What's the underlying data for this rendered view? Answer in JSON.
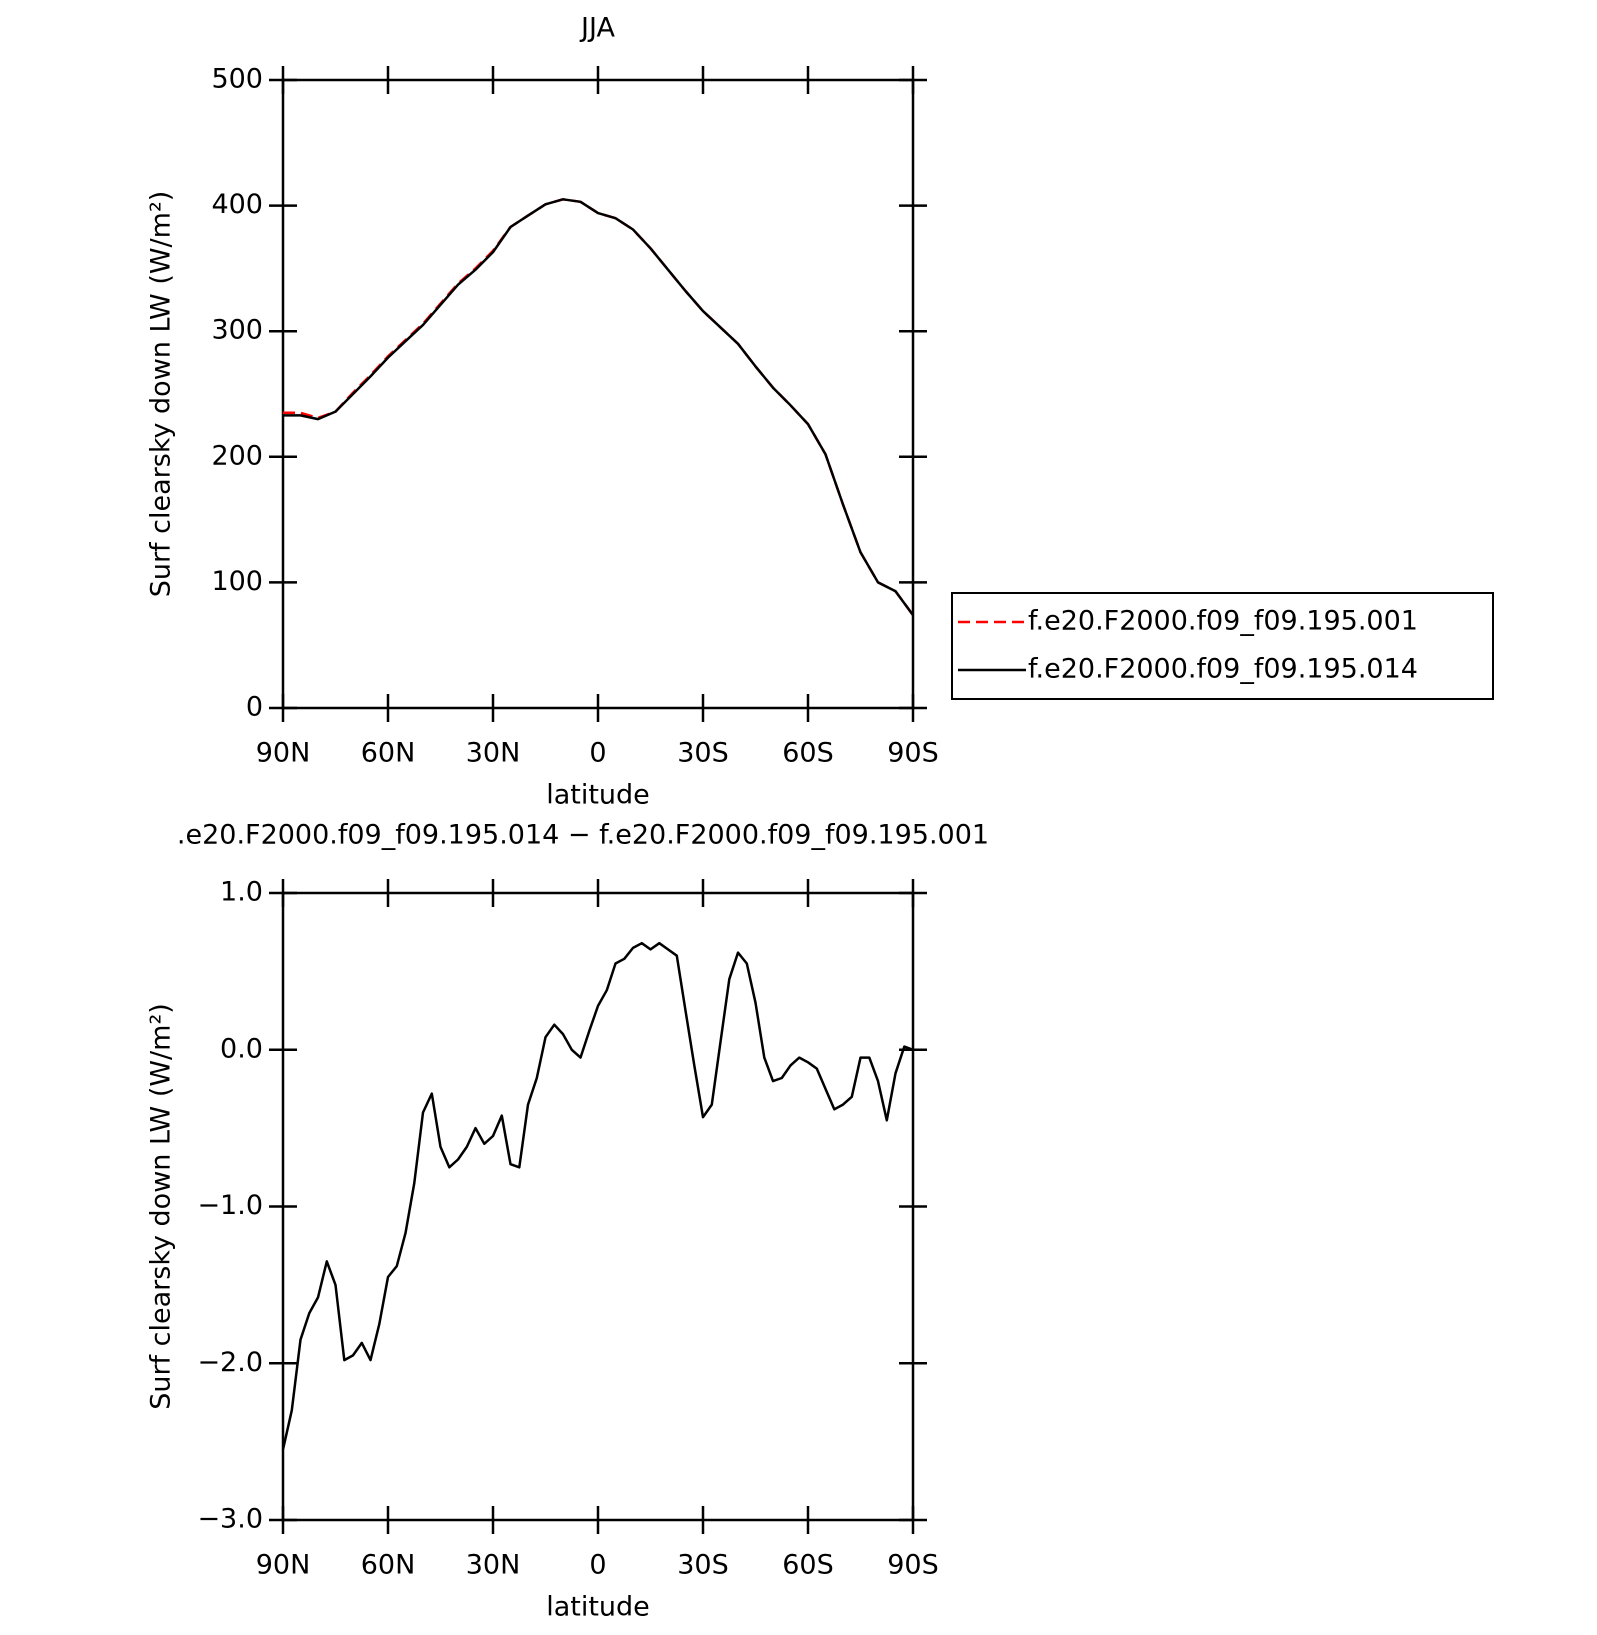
{
  "chart_data": [
    {
      "type": "line",
      "title": "JJA",
      "xlabel": "latitude",
      "ylabel": "Surf clearsky down LW (W/m²)",
      "x": [
        90,
        85,
        80,
        75,
        70,
        65,
        60,
        55,
        50,
        45,
        40,
        35,
        30,
        25,
        20,
        15,
        10,
        5,
        0,
        -5,
        -10,
        -15,
        -20,
        -25,
        -30,
        -35,
        -40,
        -45,
        -50,
        -55,
        -60,
        -65,
        -70,
        -75,
        -80,
        -85,
        -90
      ],
      "series": [
        {
          "name": "f.e20.F2000.f09_f09.195.001",
          "color": "#ff0000",
          "dashed": true,
          "values": [
            235,
            235,
            231,
            236,
            251,
            265,
            280,
            293,
            306,
            322,
            338,
            350,
            364,
            383,
            392,
            401,
            405,
            403,
            394,
            390,
            381,
            366,
            349,
            332,
            316,
            303,
            290,
            272,
            255,
            241,
            226,
            202,
            162,
            124,
            100,
            93,
            74
          ]
        },
        {
          "name": "f.e20.F2000.f09_f09.195.014",
          "color": "#000000",
          "dashed": false,
          "values": [
            233,
            233,
            230,
            236,
            250,
            264,
            279,
            292,
            305,
            321,
            337,
            349,
            363,
            383,
            392,
            401,
            405,
            403,
            394,
            390,
            381,
            366,
            349,
            332,
            316,
            303,
            290,
            272,
            255,
            241,
            226,
            202,
            162,
            124,
            100,
            93,
            74
          ]
        }
      ],
      "xlim": [
        90,
        -90
      ],
      "xticks": [
        {
          "value": 90,
          "label": "90N"
        },
        {
          "value": 60,
          "label": "60N"
        },
        {
          "value": 30,
          "label": "30N"
        },
        0,
        {
          "value": -30,
          "label": "30S"
        },
        {
          "value": -60,
          "label": "60S"
        },
        {
          "value": -90,
          "label": "90S"
        }
      ],
      "ylim": [
        0,
        500
      ],
      "yticks": [
        0,
        100,
        200,
        300,
        400,
        500
      ],
      "legend": "right"
    },
    {
      "type": "line",
      "title": ".e20.F2000.f09_f09.195.014 − f.e20.F2000.f09_f09.195.001",
      "xlabel": "latitude",
      "ylabel": "Surf clearsky down LW (W/m²)",
      "x": [
        90,
        87.5,
        85,
        82.5,
        80,
        77.5,
        75,
        72.5,
        70,
        67.5,
        65,
        62.5,
        60,
        57.5,
        55,
        52.5,
        50,
        47.5,
        45,
        42.5,
        40,
        37.5,
        35,
        32.5,
        30,
        27.5,
        25,
        22.5,
        20,
        17.5,
        15,
        12.5,
        10,
        7.5,
        5,
        2.5,
        0,
        -2.5,
        -5,
        -7.5,
        -10,
        -12.5,
        -15,
        -17.5,
        -20,
        -22.5,
        -25,
        -27.5,
        -30,
        -32.5,
        -35,
        -37.5,
        -40,
        -42.5,
        -45,
        -47.5,
        -50,
        -52.5,
        -55,
        -57.5,
        -60,
        -62.5,
        -65,
        -67.5,
        -70,
        -72.5,
        -75,
        -77.5,
        -80,
        -82.5,
        -85,
        -87.5,
        -90
      ],
      "values": [
        -2.55,
        -2.3,
        -1.85,
        -1.68,
        -1.58,
        -1.35,
        -1.5,
        -1.98,
        -1.95,
        -1.87,
        -1.98,
        -1.75,
        -1.45,
        -1.38,
        -1.17,
        -0.85,
        -0.4,
        -0.28,
        -0.62,
        -0.75,
        -0.7,
        -0.62,
        -0.5,
        -0.6,
        -0.55,
        -0.42,
        -0.73,
        -0.75,
        -0.35,
        -0.18,
        0.08,
        0.16,
        0.1,
        0.0,
        -0.05,
        0.12,
        0.28,
        0.38,
        0.55,
        0.58,
        0.65,
        0.68,
        0.64,
        0.68,
        0.64,
        0.6,
        0.25,
        -0.1,
        -0.43,
        -0.35,
        0.05,
        0.45,
        0.62,
        0.55,
        0.3,
        -0.05,
        -0.2,
        -0.18,
        -0.1,
        -0.05,
        -0.08,
        -0.12,
        -0.25,
        -0.38,
        -0.35,
        -0.3,
        -0.05,
        -0.05,
        -0.2,
        -0.45,
        -0.15,
        0.02,
        0.0
      ],
      "color": "#000000",
      "xlim": [
        90,
        -90
      ],
      "xticks": [
        {
          "value": 90,
          "label": "90N"
        },
        {
          "value": 60,
          "label": "60N"
        },
        {
          "value": 30,
          "label": "30N"
        },
        0,
        {
          "value": -30,
          "label": "30S"
        },
        {
          "value": -60,
          "label": "60S"
        },
        {
          "value": -90,
          "label": "90S"
        }
      ],
      "ylim": [
        -3,
        1
      ],
      "yticks": [
        {
          "value": 1,
          "label": "1.0"
        },
        {
          "value": 0,
          "label": "0.0"
        },
        {
          "value": -1,
          "label": "−1.0"
        },
        {
          "value": -2,
          "label": "−2.0"
        },
        {
          "value": -3,
          "label": "−3.0"
        }
      ]
    }
  ]
}
